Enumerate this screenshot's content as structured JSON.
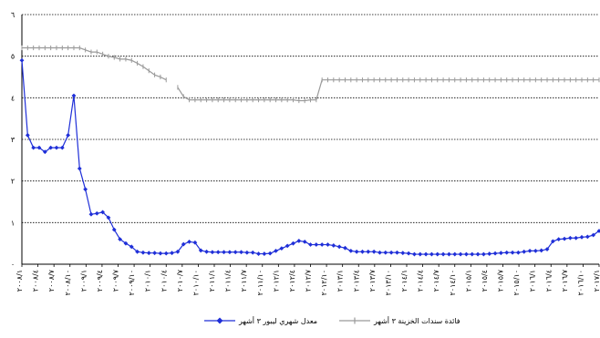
{
  "chart_data": {
    "type": "line",
    "ylim": [
      0,
      6
    ],
    "yticks": [
      "٠",
      "١",
      "٢",
      "٣",
      "٤",
      "٥",
      "٦"
    ],
    "grid": "horizontal dotted",
    "legend_position": "bottom",
    "x_tick_labels": [
      "٢٠٠٨/١",
      "٢٠٠٨/٤",
      "٢٠٠٨/٧",
      "٢٠٠٨/١٠",
      "٢٠٠٩/١",
      "٢٠٠٩/٤",
      "٢٠٠٩/٧",
      "٢٠٠٩/١٠",
      "٢٠١٠/١",
      "٢٠١٠/٤",
      "٢٠١٠/٧",
      "٢٠١٠/١٠",
      "٢٠١١/١",
      "٢٠١١/٤",
      "٢٠١١/٧",
      "٢٠١١/١٠",
      "٢٠١٢/١",
      "٢٠١٢/٤",
      "٢٠١٢/٧",
      "٢٠١٢/١٠",
      "٢٠١٣/١",
      "٢٠١٣/٤",
      "٢٠١٣/٧",
      "٢٠١٣/١٠",
      "٢٠١٤/١",
      "٢٠١٤/٤",
      "٢٠١٤/٧",
      "٢٠١٤/١٠",
      "٢٠١٥/١",
      "٢٠١٥/٤",
      "٢٠١٥/٧",
      "٢٠١٥/١٠",
      "٢٠١٦/١",
      "٢٠١٦/٤",
      "٢٠١٦/٧",
      "٢٠١٦/١٠",
      "٢٠١٧/١"
    ],
    "series": [
      {
        "name": "معدل شهري ليبور ٣ أشهر",
        "color": "#1f2fd8",
        "marker": "diamond",
        "values": [
          4.9,
          3.1,
          2.8,
          2.8,
          2.7,
          2.8,
          2.8,
          2.8,
          3.1,
          4.05,
          2.3,
          1.8,
          1.2,
          1.22,
          1.25,
          1.12,
          0.83,
          0.6,
          0.5,
          0.42,
          0.3,
          0.28,
          0.27,
          0.27,
          0.26,
          0.26,
          0.27,
          0.3,
          0.48,
          0.54,
          0.52,
          0.33,
          0.3,
          0.29,
          0.29,
          0.29,
          0.29,
          0.29,
          0.29,
          0.28,
          0.28,
          0.25,
          0.25,
          0.26,
          0.32,
          0.38,
          0.44,
          0.5,
          0.56,
          0.54,
          0.47,
          0.47,
          0.47,
          0.47,
          0.45,
          0.42,
          0.39,
          0.32,
          0.3,
          0.3,
          0.3,
          0.3,
          0.28,
          0.28,
          0.28,
          0.28,
          0.27,
          0.26,
          0.24,
          0.24,
          0.24,
          0.24,
          0.24,
          0.24,
          0.24,
          0.24,
          0.24,
          0.24,
          0.24,
          0.24,
          0.24,
          0.25,
          0.26,
          0.27,
          0.28,
          0.28,
          0.28,
          0.3,
          0.32,
          0.32,
          0.33,
          0.36,
          0.55,
          0.6,
          0.61,
          0.63,
          0.63,
          0.65,
          0.66,
          0.7,
          0.8
        ]
      },
      {
        "name": "فائدة سندات الخزينة ٣ أشهر",
        "color": "#9a9a9a",
        "marker": "plus",
        "values": [
          5.2,
          5.2,
          5.2,
          5.2,
          5.2,
          5.2,
          5.2,
          5.2,
          5.2,
          5.2,
          5.2,
          5.15,
          5.1,
          5.1,
          5.05,
          5.0,
          4.97,
          4.93,
          4.93,
          4.9,
          4.83,
          4.75,
          4.65,
          4.55,
          4.5,
          4.43,
          null,
          4.25,
          4.03,
          3.95,
          3.95,
          3.95,
          3.95,
          3.95,
          3.95,
          3.95,
          3.95,
          3.95,
          3.95,
          3.95,
          3.95,
          3.95,
          3.95,
          3.95,
          3.95,
          3.95,
          3.95,
          3.95,
          3.93,
          3.93,
          3.95,
          3.95,
          4.43,
          4.43,
          4.43,
          4.43,
          4.43,
          4.43,
          4.43,
          4.43,
          4.43,
          4.43,
          4.43,
          4.43,
          4.43,
          4.43,
          4.43,
          4.43,
          4.43,
          4.43,
          4.43,
          4.43,
          4.43,
          4.43,
          4.43,
          4.43,
          4.43,
          4.43,
          4.43,
          4.43,
          4.43,
          4.43,
          4.43,
          4.43,
          4.43,
          4.43,
          4.43,
          4.43,
          4.43,
          4.43,
          4.43,
          4.43,
          4.43,
          4.43,
          4.43,
          4.43,
          4.43,
          4.43,
          4.43,
          4.43,
          4.43
        ]
      }
    ]
  }
}
